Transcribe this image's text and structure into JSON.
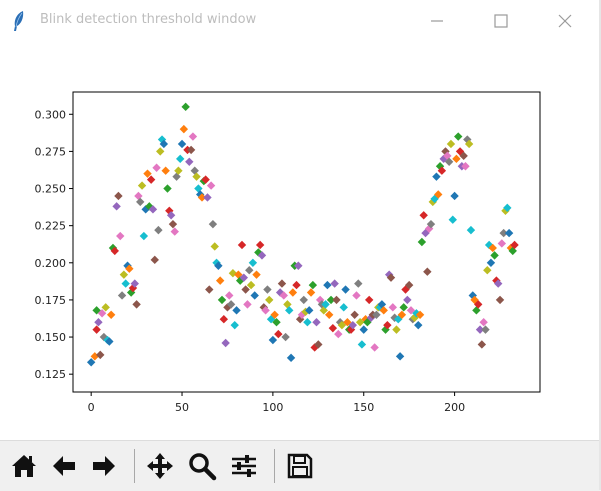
{
  "window": {
    "title": "Blink detection threshold window"
  },
  "titlebar_buttons": {
    "minimize_icon": "minimize-icon",
    "maximize_icon": "maximize-icon",
    "close_icon": "close-icon"
  },
  "toolbar": {
    "buttons": [
      "home-icon",
      "back-icon",
      "forward-icon",
      "pan-icon",
      "zoom-icon",
      "configure-subplots-icon",
      "save-icon"
    ],
    "coordinates": ""
  },
  "chart_data": {
    "type": "scatter",
    "marker": "diamond",
    "title": "",
    "xlabel": "",
    "ylabel": "",
    "xlim": [
      -10,
      247
    ],
    "ylim": [
      0.113,
      0.315
    ],
    "grid": false,
    "legend": "none",
    "xticks": [
      0,
      50,
      100,
      150,
      200
    ],
    "xtick_labels": [
      "0",
      "50",
      "100",
      "150",
      "200"
    ],
    "yticks": [
      0.125,
      0.15,
      0.175,
      0.2,
      0.225,
      0.25,
      0.275,
      0.3
    ],
    "ytick_labels": [
      "0.125",
      "0.150",
      "0.175",
      "0.200",
      "0.225",
      "0.250",
      "0.275",
      "0.300"
    ],
    "colors": [
      "#1f77b4",
      "#ff7f0e",
      "#2ca02c",
      "#d62728",
      "#9467bd",
      "#8c564b",
      "#e377c2",
      "#7f7f7f",
      "#bcbd22",
      "#17becf"
    ],
    "points": [
      [
        0,
        0.133
      ],
      [
        2,
        0.137
      ],
      [
        3,
        0.168
      ],
      [
        3,
        0.155
      ],
      [
        4,
        0.16
      ],
      [
        5,
        0.138
      ],
      [
        6,
        0.166
      ],
      [
        7,
        0.15
      ],
      [
        8,
        0.17
      ],
      [
        9,
        0.148
      ],
      [
        10,
        0.147
      ],
      [
        11,
        0.165
      ],
      [
        12,
        0.21
      ],
      [
        13,
        0.208
      ],
      [
        14,
        0.238
      ],
      [
        15,
        0.245
      ],
      [
        16,
        0.218
      ],
      [
        17,
        0.178
      ],
      [
        18,
        0.192
      ],
      [
        19,
        0.186
      ],
      [
        20,
        0.198
      ],
      [
        21,
        0.196
      ],
      [
        22,
        0.18
      ],
      [
        23,
        0.183
      ],
      [
        24,
        0.186
      ],
      [
        25,
        0.172
      ],
      [
        26,
        0.245
      ],
      [
        27,
        0.241
      ],
      [
        28,
        0.252
      ],
      [
        29,
        0.218
      ],
      [
        30,
        0.236
      ],
      [
        31,
        0.26
      ],
      [
        32,
        0.238
      ],
      [
        33,
        0.256
      ],
      [
        34,
        0.236
      ],
      [
        35,
        0.202
      ],
      [
        36,
        0.264
      ],
      [
        37,
        0.222
      ],
      [
        38,
        0.275
      ],
      [
        39,
        0.283
      ],
      [
        40,
        0.28
      ],
      [
        41,
        0.262
      ],
      [
        42,
        0.25
      ],
      [
        43,
        0.235
      ],
      [
        44,
        0.232
      ],
      [
        45,
        0.226
      ],
      [
        46,
        0.221
      ],
      [
        47,
        0.258
      ],
      [
        48,
        0.262
      ],
      [
        49,
        0.27
      ],
      [
        50,
        0.28
      ],
      [
        51,
        0.29
      ],
      [
        52,
        0.305
      ],
      [
        53,
        0.276
      ],
      [
        54,
        0.268
      ],
      [
        55,
        0.276
      ],
      [
        56,
        0.285
      ],
      [
        57,
        0.262
      ],
      [
        58,
        0.258
      ],
      [
        59,
        0.25
      ],
      [
        60,
        0.246
      ],
      [
        61,
        0.244
      ],
      [
        62,
        0.255
      ],
      [
        63,
        0.256
      ],
      [
        64,
        0.244
      ],
      [
        65,
        0.182
      ],
      [
        66,
        0.252
      ],
      [
        67,
        0.226
      ],
      [
        68,
        0.211
      ],
      [
        69,
        0.2
      ],
      [
        70,
        0.198
      ],
      [
        71,
        0.188
      ],
      [
        72,
        0.175
      ],
      [
        73,
        0.162
      ],
      [
        74,
        0.146
      ],
      [
        75,
        0.17
      ],
      [
        76,
        0.178
      ],
      [
        77,
        0.172
      ],
      [
        78,
        0.193
      ],
      [
        79,
        0.158
      ],
      [
        80,
        0.168
      ],
      [
        81,
        0.192
      ],
      [
        82,
        0.188
      ],
      [
        83,
        0.212
      ],
      [
        84,
        0.19
      ],
      [
        85,
        0.182
      ],
      [
        86,
        0.172
      ],
      [
        87,
        0.195
      ],
      [
        88,
        0.185
      ],
      [
        89,
        0.2
      ],
      [
        90,
        0.178
      ],
      [
        91,
        0.192
      ],
      [
        92,
        0.207
      ],
      [
        93,
        0.212
      ],
      [
        94,
        0.205
      ],
      [
        95,
        0.17
      ],
      [
        96,
        0.168
      ],
      [
        97,
        0.182
      ],
      [
        98,
        0.175
      ],
      [
        99,
        0.162
      ],
      [
        100,
        0.148
      ],
      [
        101,
        0.165
      ],
      [
        102,
        0.16
      ],
      [
        103,
        0.152
      ],
      [
        104,
        0.18
      ],
      [
        105,
        0.186
      ],
      [
        106,
        0.178
      ],
      [
        107,
        0.15
      ],
      [
        108,
        0.172
      ],
      [
        109,
        0.168
      ],
      [
        110,
        0.136
      ],
      [
        111,
        0.18
      ],
      [
        112,
        0.198
      ],
      [
        113,
        0.185
      ],
      [
        114,
        0.198
      ],
      [
        115,
        0.162
      ],
      [
        116,
        0.165
      ],
      [
        117,
        0.175
      ],
      [
        118,
        0.167
      ],
      [
        119,
        0.16
      ],
      [
        120,
        0.168
      ],
      [
        121,
        0.18
      ],
      [
        122,
        0.185
      ],
      [
        123,
        0.143
      ],
      [
        124,
        0.16
      ],
      [
        125,
        0.145
      ],
      [
        126,
        0.175
      ],
      [
        127,
        0.172
      ],
      [
        128,
        0.168
      ],
      [
        129,
        0.172
      ],
      [
        130,
        0.185
      ],
      [
        131,
        0.165
      ],
      [
        132,
        0.175
      ],
      [
        133,
        0.156
      ],
      [
        134,
        0.186
      ],
      [
        135,
        0.175
      ],
      [
        136,
        0.152
      ],
      [
        137,
        0.16
      ],
      [
        138,
        0.158
      ],
      [
        139,
        0.17
      ],
      [
        140,
        0.182
      ],
      [
        141,
        0.16
      ],
      [
        142,
        0.155
      ],
      [
        143,
        0.155
      ],
      [
        144,
        0.158
      ],
      [
        145,
        0.165
      ],
      [
        146,
        0.178
      ],
      [
        147,
        0.186
      ],
      [
        148,
        0.16
      ],
      [
        149,
        0.145
      ],
      [
        150,
        0.155
      ],
      [
        151,
        0.162
      ],
      [
        152,
        0.16
      ],
      [
        153,
        0.175
      ],
      [
        154,
        0.163
      ],
      [
        155,
        0.165
      ],
      [
        156,
        0.143
      ],
      [
        157,
        0.165
      ],
      [
        158,
        0.17
      ],
      [
        159,
        0.17
      ],
      [
        160,
        0.172
      ],
      [
        161,
        0.168
      ],
      [
        162,
        0.155
      ],
      [
        163,
        0.158
      ],
      [
        164,
        0.192
      ],
      [
        165,
        0.19
      ],
      [
        166,
        0.17
      ],
      [
        167,
        0.163
      ],
      [
        168,
        0.155
      ],
      [
        169,
        0.162
      ],
      [
        170,
        0.137
      ],
      [
        171,
        0.165
      ],
      [
        172,
        0.17
      ],
      [
        173,
        0.182
      ],
      [
        174,
        0.175
      ],
      [
        175,
        0.185
      ],
      [
        176,
        0.168
      ],
      [
        177,
        0.162
      ],
      [
        178,
        0.163
      ],
      [
        179,
        0.166
      ],
      [
        180,
        0.158
      ],
      [
        181,
        0.165
      ],
      [
        182,
        0.214
      ],
      [
        183,
        0.232
      ],
      [
        184,
        0.22
      ],
      [
        185,
        0.194
      ],
      [
        186,
        0.223
      ],
      [
        187,
        0.226
      ],
      [
        188,
        0.241
      ],
      [
        189,
        0.243
      ],
      [
        190,
        0.258
      ],
      [
        191,
        0.246
      ],
      [
        192,
        0.265
      ],
      [
        193,
        0.262
      ],
      [
        194,
        0.27
      ],
      [
        195,
        0.275
      ],
      [
        196,
        0.272
      ],
      [
        197,
        0.268
      ],
      [
        198,
        0.28
      ],
      [
        199,
        0.229
      ],
      [
        200,
        0.245
      ],
      [
        201,
        0.27
      ],
      [
        202,
        0.285
      ],
      [
        203,
        0.275
      ],
      [
        204,
        0.265
      ],
      [
        205,
        0.272
      ],
      [
        206,
        0.265
      ],
      [
        207,
        0.283
      ],
      [
        208,
        0.28
      ],
      [
        209,
        0.222
      ],
      [
        210,
        0.178
      ],
      [
        211,
        0.175
      ],
      [
        212,
        0.168
      ],
      [
        213,
        0.172
      ],
      [
        214,
        0.155
      ],
      [
        215,
        0.145
      ],
      [
        216,
        0.16
      ],
      [
        217,
        0.155
      ],
      [
        218,
        0.195
      ],
      [
        219,
        0.212
      ],
      [
        220,
        0.2
      ],
      [
        221,
        0.21
      ],
      [
        222,
        0.205
      ],
      [
        223,
        0.188
      ],
      [
        224,
        0.186
      ],
      [
        225,
        0.175
      ],
      [
        226,
        0.213
      ],
      [
        227,
        0.22
      ],
      [
        228,
        0.235
      ],
      [
        229,
        0.237
      ],
      [
        230,
        0.22
      ],
      [
        231,
        0.21
      ],
      [
        232,
        0.208
      ],
      [
        233,
        0.212
      ]
    ]
  }
}
